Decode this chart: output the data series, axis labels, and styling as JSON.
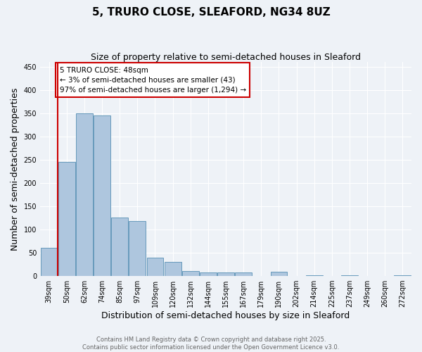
{
  "title": "5, TRURO CLOSE, SLEAFORD, NG34 8UZ",
  "subtitle": "Size of property relative to semi-detached houses in Sleaford",
  "xlabel": "Distribution of semi-detached houses by size in Sleaford",
  "ylabel": "Number of semi-detached properties",
  "categories": [
    "39sqm",
    "50sqm",
    "62sqm",
    "74sqm",
    "85sqm",
    "97sqm",
    "109sqm",
    "120sqm",
    "132sqm",
    "144sqm",
    "155sqm",
    "167sqm",
    "179sqm",
    "190sqm",
    "202sqm",
    "214sqm",
    "225sqm",
    "237sqm",
    "249sqm",
    "260sqm",
    "272sqm"
  ],
  "values": [
    60,
    245,
    350,
    345,
    125,
    118,
    40,
    30,
    10,
    7,
    8,
    8,
    0,
    9,
    0,
    2,
    0,
    1,
    0,
    0,
    2
  ],
  "bar_color": "#aec6de",
  "bar_edge_color": "#6699bb",
  "highlight_line_color": "#cc0000",
  "annotation_text": "5 TRURO CLOSE: 48sqm\n← 3% of semi-detached houses are smaller (43)\n97% of semi-detached houses are larger (1,294) →",
  "annotation_box_color": "#cc0000",
  "ylim": [
    0,
    460
  ],
  "yticks": [
    0,
    50,
    100,
    150,
    200,
    250,
    300,
    350,
    400,
    450
  ],
  "footer_text": "Contains HM Land Registry data © Crown copyright and database right 2025.\nContains public sector information licensed under the Open Government Licence v3.0.",
  "background_color": "#eef2f7",
  "grid_color": "#ffffff",
  "title_fontsize": 11,
  "subtitle_fontsize": 9,
  "tick_fontsize": 7,
  "label_fontsize": 9,
  "footer_fontsize": 6
}
